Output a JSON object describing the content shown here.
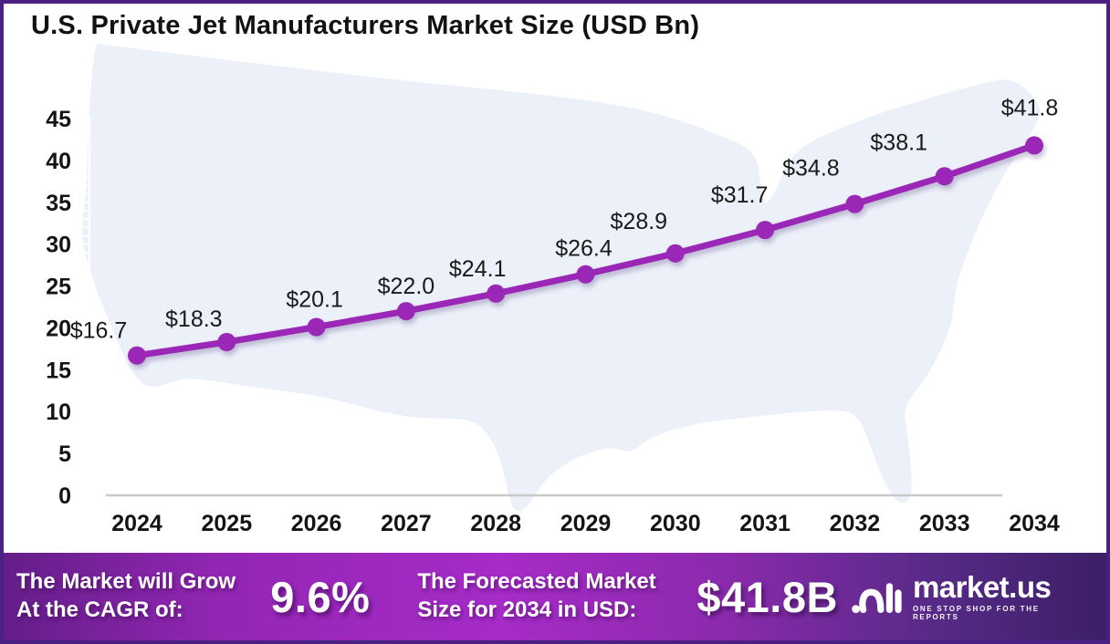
{
  "title": "U.S. Private Jet Manufacturers Market Size (USD Bn)",
  "chart_data": {
    "type": "line",
    "title": "U.S. Private Jet Manufacturers Market Size (USD Bn)",
    "x": [
      "2024",
      "2025",
      "2026",
      "2027",
      "2028",
      "2029",
      "2030",
      "2031",
      "2032",
      "2033",
      "2034"
    ],
    "values": [
      16.7,
      18.3,
      20.1,
      22.0,
      24.1,
      26.4,
      28.9,
      31.7,
      34.8,
      38.1,
      41.8
    ],
    "point_labels": [
      "$16.7",
      "$18.3",
      "$20.1",
      "$22.0",
      "$24.1",
      "$26.4",
      "$28.9",
      "$31.7",
      "$34.8",
      "$38.1",
      "$41.8"
    ],
    "ylim": [
      0,
      45
    ],
    "yticks": [
      0,
      5,
      10,
      15,
      20,
      25,
      30,
      35,
      40,
      45
    ],
    "xlabel": "",
    "ylabel": "",
    "grid": "off",
    "legend": "none",
    "line_color": "#9b27b6",
    "marker_color": "#9b27b6",
    "background": "us-map-silhouette",
    "map_color": "#ebf0f9"
  },
  "footer": {
    "cagr_text_line1": "The Market will Grow",
    "cagr_text_line2": "At the CAGR of:",
    "cagr_value": "9.6%",
    "forecast_text_line1": "The Forecasted Market",
    "forecast_text_line2": "Size for 2034 in USD:",
    "forecast_value": "$41.8B",
    "logo": {
      "name": "market.us",
      "tagline": "ONE STOP SHOP FOR THE REPORTS"
    }
  }
}
